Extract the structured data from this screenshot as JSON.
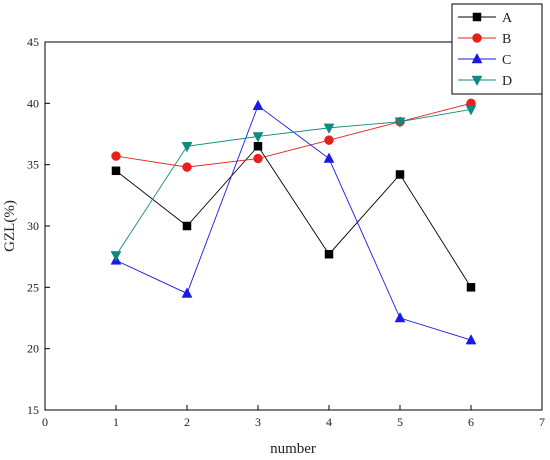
{
  "chart_data": {
    "type": "line",
    "xlabel": "number",
    "ylabel": "GZL(%)",
    "xlim": [
      0,
      7
    ],
    "ylim": [
      15,
      45
    ],
    "xticks": [
      0,
      1,
      2,
      3,
      4,
      5,
      6,
      7
    ],
    "yticks": [
      15,
      20,
      25,
      30,
      35,
      40,
      45
    ],
    "x": [
      1,
      2,
      3,
      4,
      5,
      6
    ],
    "grid": false,
    "legend_position": "top-right",
    "series": [
      {
        "name": "A",
        "color": "#000000",
        "marker": "square",
        "values": [
          34.5,
          30.0,
          36.5,
          27.7,
          34.2,
          25.0
        ]
      },
      {
        "name": "B",
        "color": "#e8201c",
        "marker": "circle",
        "values": [
          35.7,
          34.8,
          35.5,
          37.0,
          38.5,
          40.0
        ]
      },
      {
        "name": "C",
        "color": "#1a1ae6",
        "marker": "triangle-up",
        "values": [
          27.2,
          24.5,
          39.8,
          35.5,
          22.5,
          20.7
        ]
      },
      {
        "name": "D",
        "color": "#0f8a80",
        "marker": "triangle-down",
        "values": [
          27.6,
          36.5,
          37.3,
          38.0,
          38.5,
          39.5
        ]
      }
    ]
  }
}
